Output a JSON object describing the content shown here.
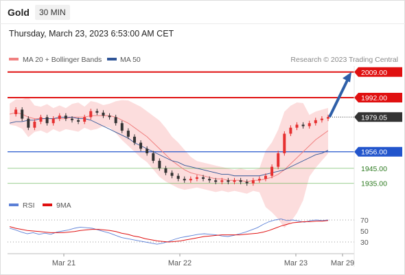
{
  "header": {
    "instrument": "Gold",
    "timeframe": "30 MIN",
    "datetime": "Thursday, March 23, 2023 6:53:00 AM CET"
  },
  "legend": {
    "items": [
      {
        "label": "MA 20 + Bollinger Bands",
        "color": "#f08080"
      },
      {
        "label": "MA 50",
        "color": "#2f5597"
      }
    ],
    "credit": "Research © 2023 Trading Central"
  },
  "colors": {
    "up": "#e63030",
    "down": "#333333",
    "resistance": "#e01010",
    "support": "#2255cc",
    "target": "#5ab04a",
    "arrow": "#2e5fa8",
    "band": "#fcd9d9"
  },
  "chart_data": [
    {
      "type": "candlestick",
      "title": "",
      "x_ticks": [
        "Mar 21",
        "Mar 22",
        "Mar 23",
        "Mar 29"
      ],
      "ylim": [
        1928,
        2013
      ],
      "last_price": "1979.05",
      "levels": [
        {
          "value": 2009.0,
          "label": "2009.00",
          "kind": "resistance"
        },
        {
          "value": 1992.0,
          "label": "1992.00",
          "kind": "resistance"
        },
        {
          "value": 1979.05,
          "label": "1979.05",
          "kind": "last"
        },
        {
          "value": 1956.0,
          "label": "1956.00",
          "kind": "support"
        },
        {
          "value": 1945.0,
          "label": "1945.00",
          "kind": "target"
        },
        {
          "value": 1935.0,
          "label": "1935.00",
          "kind": "target"
        }
      ],
      "projection": {
        "from": 1979.05,
        "to": 2009.0
      },
      "series": [
        {
          "name": "Price",
          "values": [
            1981,
            1984,
            1978,
            1972,
            1976,
            1979,
            1975,
            1978,
            1980,
            1978,
            1977,
            1976,
            1979,
            1983,
            1982,
            1980,
            1979,
            1975,
            1970,
            1966,
            1962,
            1958,
            1955,
            1950,
            1945,
            1942,
            1940,
            1938,
            1937,
            1938,
            1939,
            1938,
            1937,
            1936,
            1937,
            1936,
            1937,
            1936,
            1935,
            1937,
            1938,
            1940,
            1946,
            1955,
            1968,
            1972,
            1974,
            1973,
            1975,
            1977,
            1978,
            1979.05
          ]
        },
        {
          "name": "MA 20",
          "values": [
            1981,
            1982,
            1981,
            1979,
            1978,
            1978,
            1978,
            1978,
            1978,
            1978,
            1979,
            1979,
            1979,
            1980,
            1980,
            1980,
            1980,
            1979,
            1977,
            1975,
            1972,
            1969,
            1966,
            1962,
            1958,
            1954,
            1950,
            1947,
            1944,
            1942,
            1941,
            1940,
            1939,
            1938,
            1938,
            1937,
            1937,
            1937,
            1936,
            1937,
            1937,
            1938,
            1939,
            1941,
            1944,
            1948,
            1952,
            1956,
            1960,
            1964,
            1967,
            1970
          ]
        },
        {
          "name": "MA 50",
          "values": [
            1975,
            1976,
            1976,
            1977,
            1977,
            1978,
            1978,
            1978,
            1979,
            1979,
            1979,
            1978,
            1978,
            1977,
            1975,
            1973,
            1971,
            1969,
            1967,
            1965,
            1962,
            1960,
            1958,
            1956,
            1954,
            1952,
            1950,
            1949,
            1947,
            1946,
            1945,
            1944,
            1943,
            1942,
            1941,
            1941,
            1940,
            1940,
            1940,
            1940,
            1940,
            1941,
            1942,
            1943,
            1944,
            1946,
            1948,
            1950,
            1952,
            1954,
            1955,
            1957
          ]
        }
      ]
    },
    {
      "type": "line",
      "title": "",
      "ylim": [
        15,
        80
      ],
      "y_ticks": [
        70,
        50,
        30
      ],
      "legend": [
        "RSI",
        "9MA"
      ],
      "series": [
        {
          "name": "RSI",
          "values": [
            55,
            52,
            48,
            45,
            47,
            44,
            46,
            44,
            48,
            50,
            52,
            55,
            57,
            56,
            55,
            52,
            49,
            46,
            42,
            38,
            36,
            34,
            32,
            30,
            28,
            26,
            28,
            31,
            35,
            38,
            40,
            42,
            44,
            45,
            44,
            43,
            41,
            40,
            42,
            45,
            48,
            52,
            56,
            62,
            67,
            70,
            72,
            69,
            70,
            68,
            66,
            69,
            70,
            69,
            70
          ]
        },
        {
          "name": "9MA",
          "values": [
            58,
            55,
            53,
            51,
            50,
            49,
            48,
            47,
            47,
            47,
            48,
            49,
            51,
            52,
            53,
            53,
            52,
            51,
            49,
            46,
            44,
            41,
            39,
            36,
            34,
            32,
            31,
            30,
            31,
            32,
            34,
            36,
            38,
            40,
            41,
            42,
            43,
            43,
            43,
            43,
            44,
            45,
            46,
            48,
            51,
            55,
            59,
            62,
            65,
            66,
            67,
            67,
            68,
            68,
            69
          ]
        }
      ]
    }
  ]
}
